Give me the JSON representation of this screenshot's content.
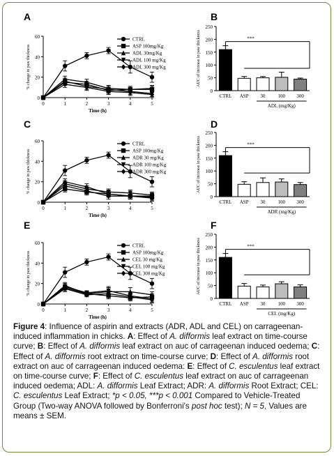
{
  "chart_data": [
    {
      "panel": "A",
      "type": "line",
      "xlabel": "Time (h)",
      "ylabel": "% change in paw thickness",
      "x": [
        0,
        1,
        2,
        3,
        4,
        5
      ],
      "xlim": [
        0,
        5
      ],
      "ylim": [
        0,
        60
      ],
      "yticks": [
        0,
        20,
        40,
        60
      ],
      "series": [
        {
          "name": "CTRL",
          "marker": "circle",
          "values": [
            0,
            31,
            41,
            46,
            30,
            20
          ],
          "errors": [
            0,
            5,
            3,
            3,
            6,
            5
          ]
        },
        {
          "name": "ASP 100mg/Kg",
          "marker": "square",
          "values": [
            0,
            15,
            13,
            7,
            8,
            8
          ],
          "errors": [
            0,
            3,
            3,
            3,
            3,
            3
          ]
        },
        {
          "name": "ADL 30mg/Kg",
          "marker": "triangle-up",
          "values": [
            0,
            18,
            15,
            9,
            8,
            9
          ],
          "errors": [
            0,
            3,
            3,
            3,
            3,
            3
          ]
        },
        {
          "name": "ADL 100 mg/Kg",
          "marker": "triangle-down",
          "values": [
            0,
            16,
            11,
            8,
            6,
            4
          ],
          "errors": [
            0,
            3,
            3,
            3,
            3,
            3
          ]
        },
        {
          "name": "ADL 300 mg/Kg",
          "marker": "diamond",
          "values": [
            0,
            13,
            10,
            6,
            5,
            3
          ],
          "errors": [
            0,
            3,
            3,
            3,
            3,
            3
          ]
        }
      ]
    },
    {
      "panel": "B",
      "type": "bar",
      "ylabel": "AUC of increase in paw thickness",
      "categories": [
        "CTRL",
        "ASP",
        "30",
        "100",
        "300"
      ],
      "group_label": "ADL (mg/Kg)",
      "values": [
        160,
        48,
        50,
        52,
        45
      ],
      "errors": [
        15,
        7,
        5,
        20,
        4
      ],
      "bar_colors": [
        "#000000",
        "#ffffff",
        "#ffffff",
        "#bdbdbd",
        "#808080"
      ],
      "ylim": [
        0,
        250
      ],
      "yticks": [
        0,
        50,
        100,
        150,
        200,
        250
      ],
      "significance": "***"
    },
    {
      "panel": "C",
      "type": "line",
      "xlabel": "Time (h)",
      "ylabel": "% change in paw thickness",
      "x": [
        0,
        1,
        2,
        3,
        4,
        5
      ],
      "xlim": [
        0,
        5
      ],
      "ylim": [
        0,
        60
      ],
      "yticks": [
        0,
        20,
        40,
        60
      ],
      "series": [
        {
          "name": "CTRL",
          "marker": "circle",
          "values": [
            0,
            31,
            41,
            46,
            30,
            20
          ],
          "errors": [
            0,
            5,
            3,
            3,
            6,
            5
          ]
        },
        {
          "name": "ASP 100mg/Kg",
          "marker": "square",
          "values": [
            0,
            13,
            10,
            8,
            6,
            6
          ],
          "errors": [
            0,
            3,
            3,
            3,
            3,
            3
          ]
        },
        {
          "name": "ADR 30 mg/Kg",
          "marker": "triangle-up",
          "values": [
            0,
            20,
            15,
            8,
            6,
            5
          ],
          "errors": [
            0,
            3,
            3,
            3,
            3,
            3
          ]
        },
        {
          "name": "ADR 100 mg/Kg",
          "marker": "triangle-down",
          "values": [
            0,
            18,
            13,
            10,
            9,
            7
          ],
          "errors": [
            0,
            3,
            3,
            3,
            3,
            3
          ]
        },
        {
          "name": "ADR 300 mg/Kg",
          "marker": "diamond",
          "values": [
            0,
            16,
            11,
            6,
            6,
            4
          ],
          "errors": [
            0,
            3,
            3,
            3,
            3,
            3
          ]
        }
      ]
    },
    {
      "panel": "D",
      "type": "bar",
      "ylabel": "AUC of increase in paw thickness",
      "categories": [
        "CTRL",
        "ASP",
        "30",
        "100",
        "300"
      ],
      "group_label": "ADR (mg/Kg)",
      "values": [
        160,
        48,
        55,
        57,
        47
      ],
      "errors": [
        15,
        10,
        18,
        12,
        8
      ],
      "bar_colors": [
        "#000000",
        "#ffffff",
        "#ffffff",
        "#bdbdbd",
        "#808080"
      ],
      "ylim": [
        0,
        250
      ],
      "yticks": [
        0,
        50,
        100,
        150,
        200,
        250
      ],
      "significance": "***"
    },
    {
      "panel": "E",
      "type": "line",
      "xlabel": "Time (h)",
      "ylabel": "% change in paw thickness",
      "x": [
        0,
        1,
        2,
        3,
        4,
        5
      ],
      "xlim": [
        0,
        5
      ],
      "ylim": [
        0,
        60
      ],
      "yticks": [
        0,
        20,
        40,
        60
      ],
      "series": [
        {
          "name": "CTRL",
          "marker": "circle",
          "values": [
            0,
            31,
            41,
            46,
            30,
            20
          ],
          "errors": [
            0,
            5,
            3,
            3,
            6,
            5
          ]
        },
        {
          "name": "ASP 100mg/Kg",
          "marker": "square",
          "values": [
            0,
            16,
            10,
            8,
            6,
            7
          ],
          "errors": [
            0,
            3,
            2,
            3,
            3,
            3
          ]
        },
        {
          "name": "CEL 30 mg/Kg",
          "marker": "triangle-up",
          "values": [
            0,
            18,
            10,
            12,
            12,
            9
          ],
          "errors": [
            0,
            3,
            2,
            4,
            4,
            3
          ]
        },
        {
          "name": "CEL 100 mg/Kg",
          "marker": "triangle-down",
          "values": [
            0,
            17,
            11,
            13,
            8,
            5
          ],
          "errors": [
            0,
            3,
            2,
            4,
            3,
            3
          ]
        },
        {
          "name": "CEL 300 mg/Kg",
          "marker": "diamond",
          "values": [
            0,
            15,
            9,
            10,
            7,
            4
          ],
          "errors": [
            0,
            3,
            2,
            3,
            3,
            3
          ]
        }
      ]
    },
    {
      "panel": "F",
      "type": "bar",
      "ylabel": "AUC of increase in paw thickness",
      "categories": [
        "CTRL",
        "ASP",
        "30",
        "100",
        "300"
      ],
      "group_label": "CEL (mg/Kg)",
      "values": [
        160,
        48,
        45,
        57,
        45
      ],
      "errors": [
        15,
        10,
        7,
        8,
        8
      ],
      "bar_colors": [
        "#000000",
        "#ffffff",
        "#ffffff",
        "#bdbdbd",
        "#808080"
      ],
      "ylim": [
        0,
        250
      ],
      "yticks": [
        0,
        50,
        100,
        150,
        200,
        250
      ],
      "significance": "***"
    }
  ],
  "caption": {
    "fig_label": "Figure 4",
    "text_1": ": Influence of aspirin and extracts (ADR, ADL and CEL) on carrageenan-induced inflammation in chicks. ",
    "a_label": "A",
    "text_2": ": Effect of ",
    "sp1": "A. difformis",
    "text_3": " leaf extract on time-course curve; ",
    "b_label": "B",
    "text_4": ": Effect of ",
    "sp2": "A. difformis",
    "text_5": " leaf extract on auc of carrageenan induced oedema; ",
    "c_label": "C",
    "text_6": ": Effect of ",
    "sp3": "A. difformis",
    "text_7": " root extract on time-course curve; ",
    "d_label": "D",
    "text_8": ": Effect of ",
    "sp4": "A. difformis",
    "text_9": " root extract on auc of carrageenan induced oedema: ",
    "e_label": "E",
    "text_10": ": Effect of ",
    "sp5": "C. esculentus",
    "text_11": " leaf extract on time-course curve; ",
    "f_label": "F",
    "text_12": ": Effect of ",
    "sp6": "C. esculentus",
    "text_13": " leaf extract on auc of carrageenan induced oedema; ADL: ",
    "sp7": "A. difformis",
    "text_14": " Leaf Extract; ADR: ",
    "sp8": "A. difformis",
    "text_15": " Root Extract; CEL: ",
    "sp9": "C. esculentus",
    "text_16": " Leaf Extract; ",
    "p1": "*p < 0.05, ***p < 0.001",
    "text_17": " Compared to Vehicle-Treated Group (Two-way ANOVA followed by Bonferroni's ",
    "posthoc": "post hoc",
    "text_18": " test); ",
    "n": "N = 5",
    "text_19": ", Values are means ± SEM."
  }
}
